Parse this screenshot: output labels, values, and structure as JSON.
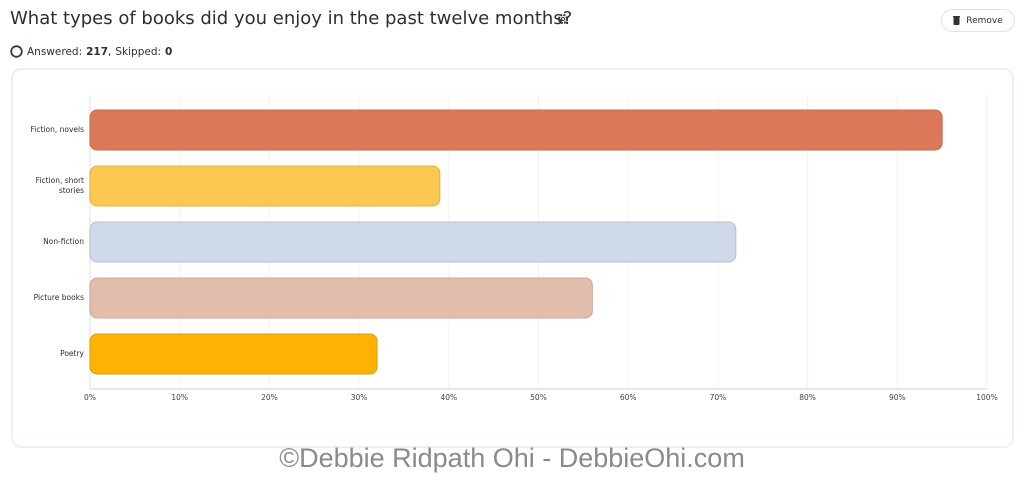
{
  "header": {
    "title": "What types of books did you enjoy in the past twelve months?",
    "remove_button": "Remove"
  },
  "stats": {
    "answered_label": "Answered:",
    "answered": 217,
    "separator": ",",
    "skipped_label": "Skipped:",
    "skipped": 0
  },
  "chart_data": {
    "type": "barh",
    "categories": [
      "Fiction, novels",
      "Fiction, short stories",
      "Non-fiction",
      "Picture books",
      "Poetry"
    ],
    "values": [
      95,
      39,
      72,
      56,
      32
    ],
    "colors": [
      "#dc785a",
      "#fdc851",
      "#d0d9ea",
      "#e3bdac",
      "#fdb204"
    ],
    "xlim": [
      0,
      100
    ],
    "xticks": [
      {
        "value": 0,
        "label": "0%"
      },
      {
        "value": 10,
        "label": "10%"
      },
      {
        "value": 20,
        "label": "20%"
      },
      {
        "value": 30,
        "label": "30%"
      },
      {
        "value": 40,
        "label": "40%"
      },
      {
        "value": 50,
        "label": "50%"
      },
      {
        "value": 60,
        "label": "60%"
      },
      {
        "value": 70,
        "label": "70%"
      },
      {
        "value": 80,
        "label": "80%"
      },
      {
        "value": 90,
        "label": "90%"
      },
      {
        "value": 100,
        "label": "100%"
      }
    ],
    "grid": true
  },
  "watermark": "©Debbie Ridpath Ohi - DebbieOhi.com"
}
